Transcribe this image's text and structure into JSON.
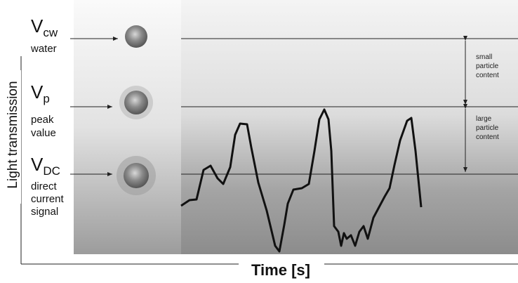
{
  "axes": {
    "y_label": "Light transmission",
    "x_label": "Time [s]"
  },
  "levels": [
    {
      "symbol": "V",
      "subscript": "cw",
      "description": [
        "water"
      ]
    },
    {
      "symbol": "V",
      "subscript": "p",
      "description": [
        "peak",
        "value"
      ]
    },
    {
      "symbol": "V",
      "subscript": "DC",
      "description": [
        "direct",
        "current",
        "signal"
      ]
    }
  ],
  "ranges": [
    {
      "label": [
        "small",
        "particle",
        "content"
      ]
    },
    {
      "label": [
        "large",
        "particle",
        "content"
      ]
    }
  ]
}
